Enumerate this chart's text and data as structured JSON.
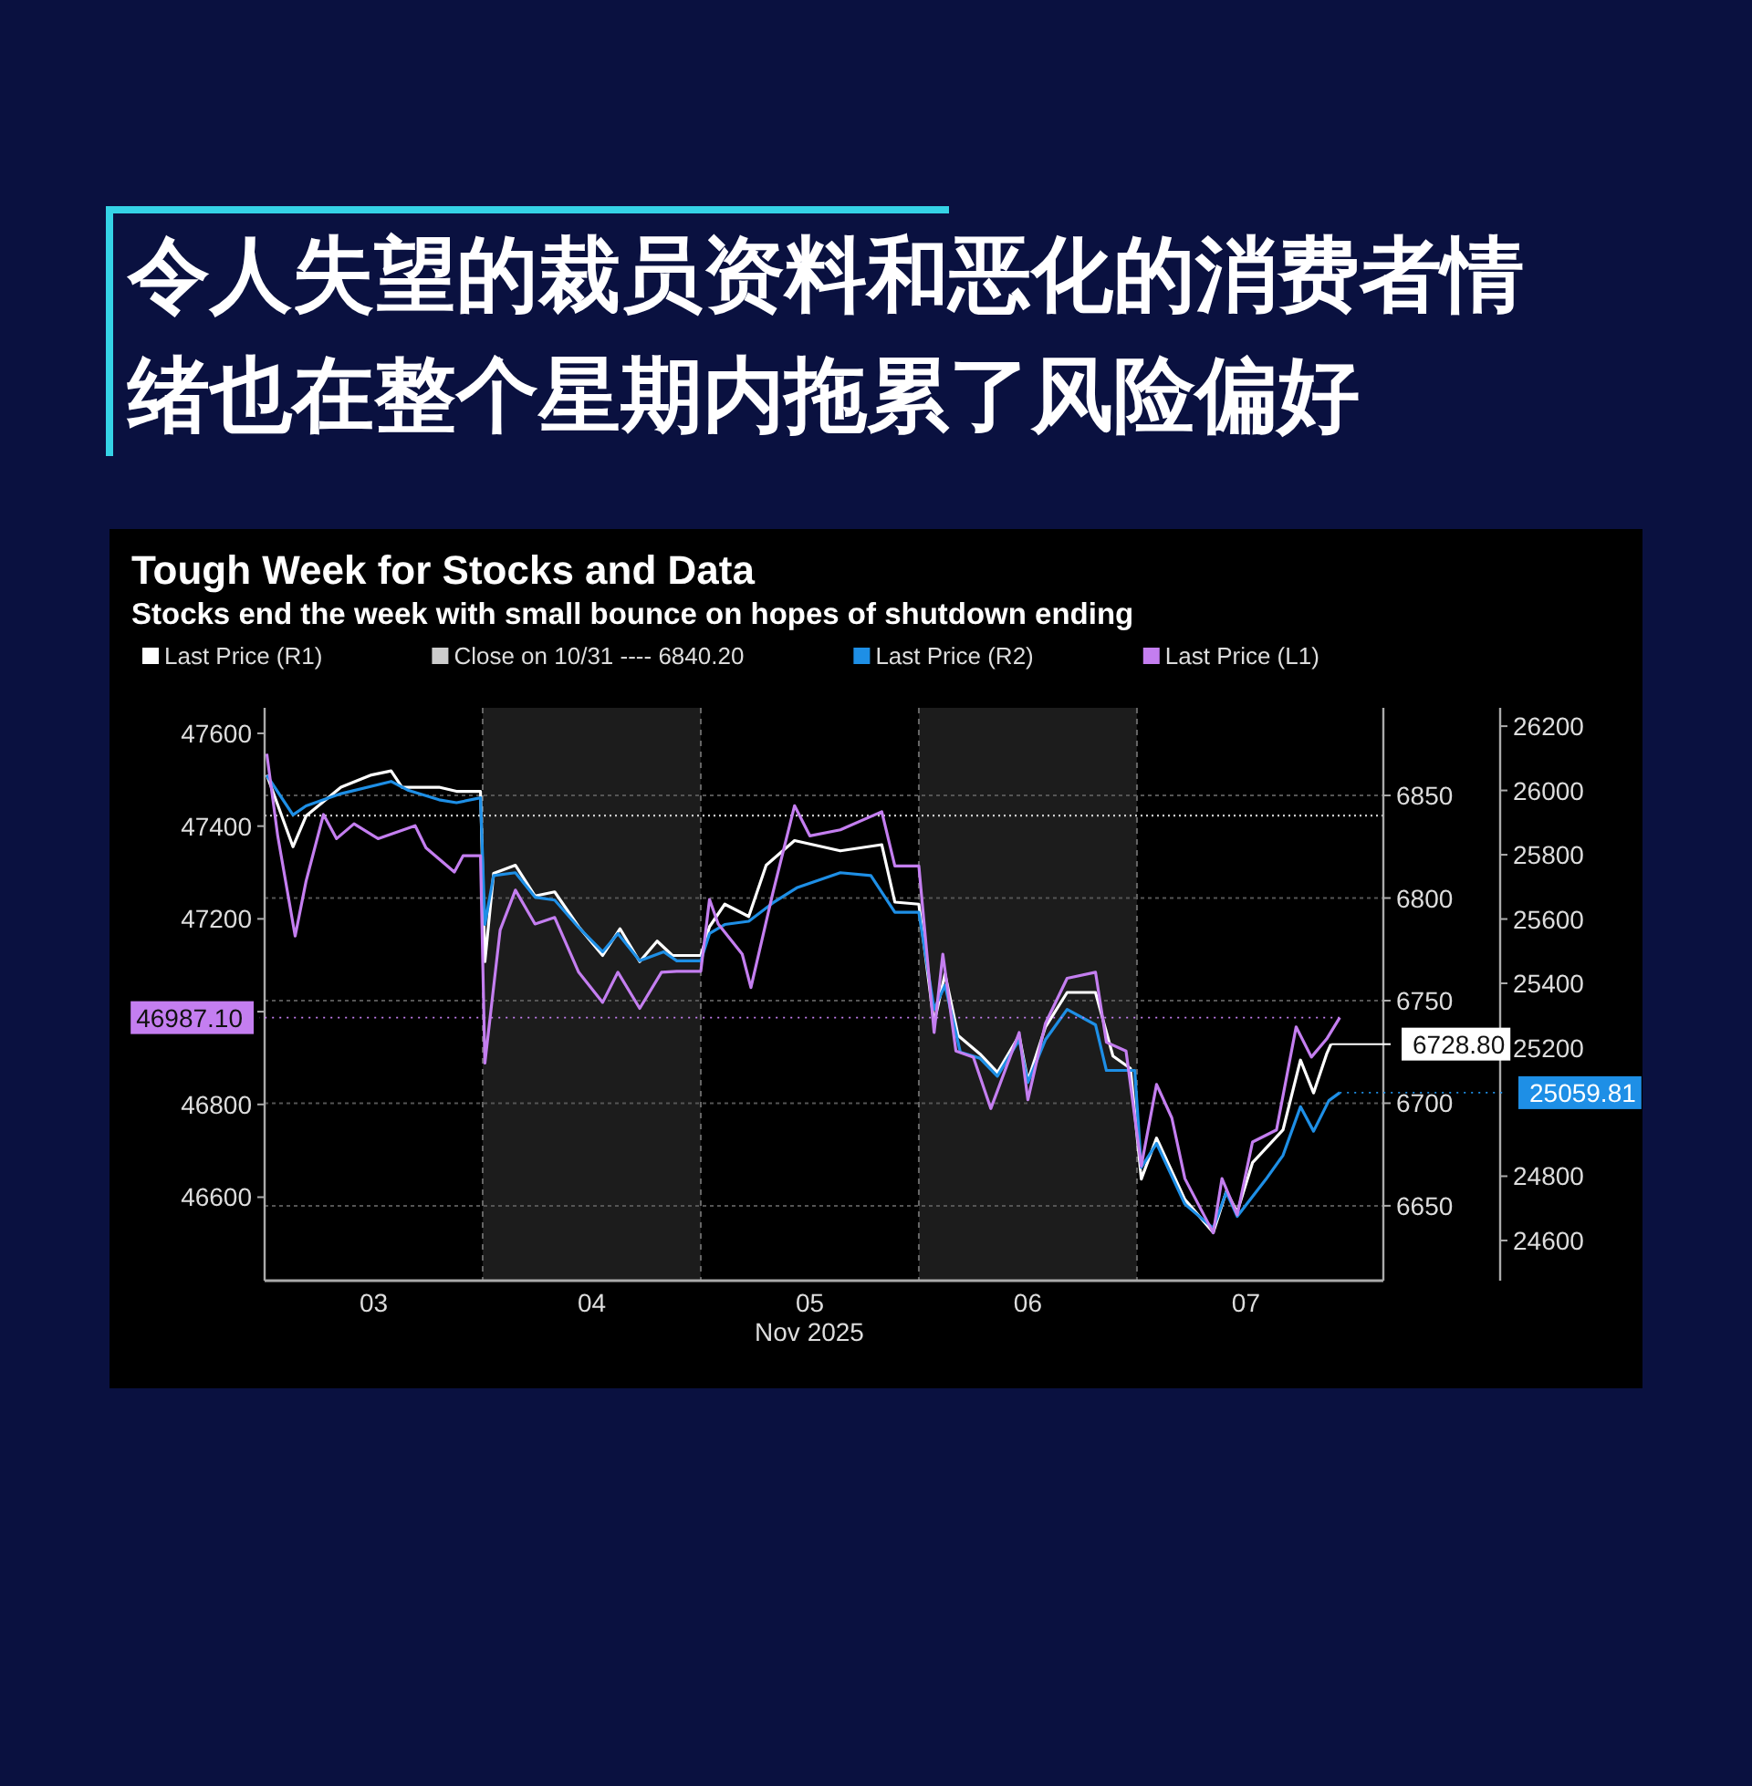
{
  "chart_data": {
    "type": "line",
    "title": "令人失望的裁员资料和恶化的消费者情绪也在整个星期内拖累了风险偏好",
    "subtitle": "Tough Week for Stocks and Data",
    "annotations": [
      "Stocks end the week with small bounce on hopes of shutdown ending"
    ],
    "xlabel": "Nov 2025",
    "xlim": [
      3,
      8.13
    ],
    "xticks": [
      {
        "value": 3.5,
        "label": "03"
      },
      {
        "value": 4.5,
        "label": "04"
      },
      {
        "value": 5.5,
        "label": "05"
      },
      {
        "value": 6.5,
        "label": "06"
      },
      {
        "value": 7.5,
        "label": "07"
      }
    ],
    "ylim": [
      46420,
      47655
    ],
    "yticks": [
      46600,
      46800,
      {
        "value": 47000,
        "label": null
      },
      47200,
      47400,
      47600
    ],
    "y2lim": [
      6613.5,
      6892.7
    ],
    "y2ticks": [
      6650,
      6700,
      6750,
      6800,
      6850
    ],
    "y3lim": [
      24475,
      26257
    ],
    "y3ticks": [
      24600,
      24800,
      25200,
      25400,
      25600,
      25800,
      26000,
      26200
    ],
    "grid": "y",
    "legend": "top",
    "series": [
      {
        "name": "Last Price (R1)",
        "axis": "y2",
        "color": "#ffffff",
        "x": [
          3.01,
          3.13,
          3.19,
          3.35,
          3.49,
          3.58,
          3.63,
          3.8,
          3.88,
          3.99,
          4.01,
          4.05,
          4.15,
          4.24,
          4.33,
          4.44,
          4.55,
          4.63,
          4.72,
          4.8,
          4.87,
          5.0,
          5.04,
          5.11,
          5.22,
          5.3,
          5.43,
          5.64,
          5.83,
          5.89,
          6.0,
          6.07,
          6.12,
          6.18,
          6.28,
          6.36,
          6.46,
          6.5,
          6.58,
          6.68,
          6.81,
          6.89,
          6.97,
          7.02,
          7.09,
          7.22,
          7.35,
          7.41,
          7.46,
          7.53,
          7.67,
          7.75,
          7.81,
          7.87,
          7.89
        ],
        "values": [
          6860,
          6825,
          6840,
          6854,
          6860,
          6862,
          6854,
          6854,
          6852,
          6852,
          6769,
          6812,
          6816,
          6801,
          6803,
          6786,
          6772,
          6785,
          6769,
          6779,
          6772,
          6772,
          6786,
          6797,
          6791,
          6816,
          6828,
          6823,
          6826,
          6798,
          6797,
          6739,
          6763,
          6733,
          6724,
          6715,
          6733,
          6711,
          6737,
          6754,
          6754,
          6723,
          6717,
          6663,
          6683,
          6653,
          6637,
          6657,
          6647,
          6671,
          6687,
          6721,
          6705,
          6724,
          6728.8
        ],
        "value_labels": [
          null,
          null,
          null,
          null,
          null,
          null,
          null,
          null,
          null,
          null,
          null,
          null,
          null,
          null,
          null,
          null,
          null,
          null,
          null,
          null,
          null,
          null,
          null,
          null,
          null,
          null,
          null,
          null,
          null,
          null,
          null,
          null,
          null,
          null,
          null,
          null,
          null,
          null,
          null,
          null,
          null,
          null,
          null,
          null,
          null,
          null,
          null,
          null,
          null,
          null,
          null,
          null,
          null,
          null,
          "6728.80"
        ]
      },
      {
        "name": "Last Price (R2)",
        "axis": "y3",
        "color": "#1e8fe6",
        "x": [
          3.01,
          3.13,
          3.19,
          3.35,
          3.58,
          3.66,
          3.8,
          3.88,
          3.99,
          4.01,
          4.05,
          4.15,
          4.24,
          4.33,
          4.44,
          4.55,
          4.62,
          4.72,
          4.83,
          4.89,
          5.0,
          5.04,
          5.11,
          5.22,
          5.33,
          5.44,
          5.64,
          5.78,
          5.89,
          6.0,
          6.07,
          6.12,
          6.19,
          6.28,
          6.36,
          6.46,
          6.5,
          6.58,
          6.68,
          6.81,
          6.86,
          6.99,
          7.02,
          7.09,
          7.22,
          7.35,
          7.41,
          7.46,
          7.59,
          7.67,
          7.75,
          7.81,
          7.88,
          7.93
        ],
        "values": [
          26047,
          25924,
          25952,
          25990,
          26028,
          26000,
          25971,
          25962,
          25977,
          25583,
          25735,
          25744,
          25668,
          25659,
          25574,
          25498,
          25555,
          25470,
          25498,
          25470,
          25470,
          25555,
          25583,
          25593,
          25650,
          25697,
          25744,
          25735,
          25621,
          25621,
          25319,
          25394,
          25186,
          25167,
          25111,
          25224,
          25092,
          25224,
          25319,
          25271,
          25129,
          25129,
          24827,
          24902,
          24713,
          24638,
          24751,
          24675,
          24789,
          24865,
          25016,
          24940,
          25035,
          25059.81
        ],
        "value_labels": [
          null,
          null,
          null,
          null,
          null,
          null,
          null,
          null,
          null,
          null,
          null,
          null,
          null,
          null,
          null,
          null,
          null,
          null,
          null,
          null,
          null,
          null,
          null,
          null,
          null,
          null,
          null,
          null,
          null,
          null,
          null,
          null,
          null,
          null,
          null,
          null,
          null,
          null,
          null,
          null,
          null,
          null,
          null,
          null,
          null,
          null,
          null,
          null,
          null,
          null,
          null,
          null,
          null,
          "25059.81"
        ]
      },
      {
        "name": "Last Price (L1)",
        "axis": "y",
        "color": "#c47ef0",
        "x": [
          3.01,
          3.06,
          3.14,
          3.19,
          3.27,
          3.33,
          3.41,
          3.52,
          3.69,
          3.74,
          3.87,
          3.91,
          3.99,
          4.01,
          4.08,
          4.15,
          4.24,
          4.33,
          4.44,
          4.55,
          4.62,
          4.72,
          4.82,
          4.89,
          5.0,
          5.04,
          5.08,
          5.19,
          5.23,
          5.33,
          5.43,
          5.5,
          5.64,
          5.83,
          5.89,
          6.0,
          6.07,
          6.11,
          6.17,
          6.25,
          6.33,
          6.46,
          6.5,
          6.58,
          6.68,
          6.81,
          6.86,
          6.95,
          7.02,
          7.09,
          7.16,
          7.22,
          7.35,
          7.39,
          7.46,
          7.53,
          7.64,
          7.73,
          7.8,
          7.87,
          7.93
        ],
        "values": [
          47556,
          47379,
          47163,
          47281,
          47425,
          47373,
          47405,
          47373,
          47401,
          47353,
          47301,
          47336,
          47336,
          46889,
          47176,
          47262,
          47189,
          47203,
          47085,
          47020,
          47085,
          47007,
          47085,
          47087,
          47087,
          47242,
          47189,
          47124,
          47052,
          47255,
          47444,
          47379,
          47392,
          47431,
          47314,
          47314,
          46955,
          47124,
          46915,
          46902,
          46791,
          46955,
          46810,
          46974,
          47072,
          47085,
          46934,
          46915,
          46667,
          46843,
          46771,
          46640,
          46523,
          46640,
          46562,
          46719,
          46745,
          46967,
          46902,
          46941,
          46987.1
        ],
        "value_labels": [
          null,
          null,
          null,
          null,
          null,
          null,
          null,
          null,
          null,
          null,
          null,
          null,
          null,
          null,
          null,
          null,
          null,
          null,
          null,
          null,
          null,
          null,
          null,
          null,
          null,
          null,
          null,
          null,
          null,
          null,
          null,
          null,
          null,
          null,
          null,
          null,
          null,
          null,
          null,
          null,
          null,
          null,
          null,
          null,
          null,
          null,
          null,
          null,
          null,
          null,
          null,
          null,
          null,
          null,
          null,
          null,
          null,
          null,
          null,
          null,
          "46987.10"
        ]
      }
    ],
    "ref_lines": [
      {
        "axis": "y2",
        "value": 6840.2,
        "label": "Close on 10/31 ---- 6840.20",
        "color": "#cccccc",
        "line_style": "dotted"
      }
    ],
    "bands": [
      {
        "axis": "x",
        "from": 4,
        "to": 5,
        "color": "#1c1c1c"
      },
      {
        "axis": "x",
        "from": 6,
        "to": 7,
        "color": "#1c1c1c"
      }
    ]
  }
}
